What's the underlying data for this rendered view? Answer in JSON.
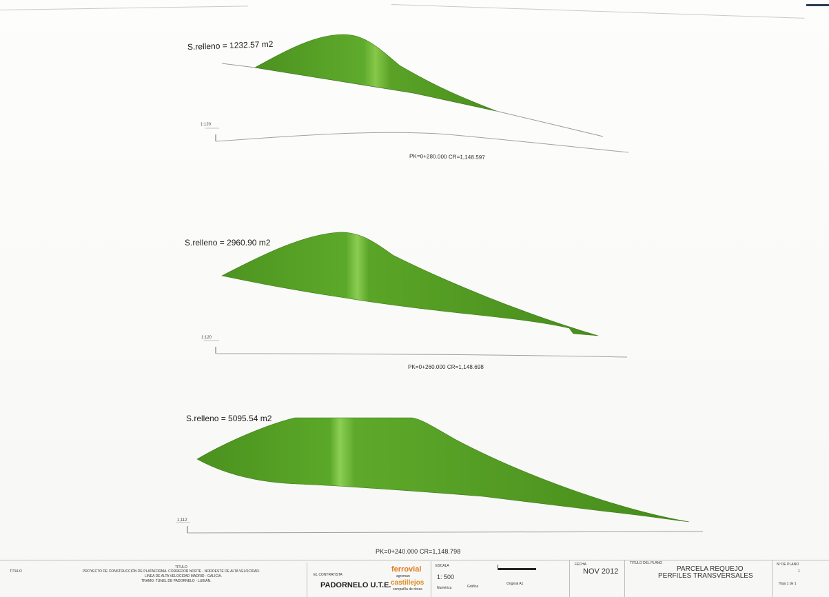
{
  "sections": [
    {
      "area_label": "S.relleno = 1232.57 m2",
      "pk_label": "PK=0+280.000   CR=1,148.597",
      "scale_label": "1:120"
    },
    {
      "area_label": "S.relleno = 2960.90 m2",
      "pk_label": "PK=0+260.000   CR=1,148.698",
      "scale_label": "1:120"
    },
    {
      "area_label": "S.relleno = 5095.54 m2",
      "pk_label": "PK=0+240.000   CR=1,148.798",
      "scale_label": "1,112"
    }
  ],
  "colors": {
    "fill": "#5aa229",
    "fill_light": "#7cc23f",
    "fill_dark": "#3f7d18",
    "line": "#9a9a9a"
  },
  "title_block": {
    "titulo_head": "TITULO",
    "titulo_caption": "TITULO",
    "titulo_line1": "PROYECTO DE CONSTRUCCIÓN DE PLATAFORMA. CORREDOR NORTE - NOROESTE DE ALTA VELOCIDAD.",
    "titulo_line2": "LINEA DE ALTA VELOCIDAD MADRID - GALICIA.",
    "titulo_line3": "TRAMO: TÚNEL DE PADORNELO - LUBIÁN.",
    "contratista_head": "EL CONTRATISTA",
    "contratista": "PADORNELO U.T.E.",
    "logo_1": "ferrovial",
    "logo_1_sub": "agroman",
    "logo_2": "castillejos",
    "logo_2_sub": "compañía de obras",
    "escala_head": "ESCALA",
    "escala": "1: 500",
    "escala_numerica": "Numérica",
    "escala_grafica": "Gráfica",
    "original": "Original A1",
    "fecha_head": "FECHA",
    "fecha": "NOV 2012",
    "plano_head": "TITULO DEL PLANO",
    "plano_line1": "PARCELA REQUEJO",
    "plano_line2": "PERFILES TRANSVERSALES",
    "num_head": "Nº DE PLANO",
    "num_value": "1",
    "hoja": "Hoja   1   de   1"
  }
}
